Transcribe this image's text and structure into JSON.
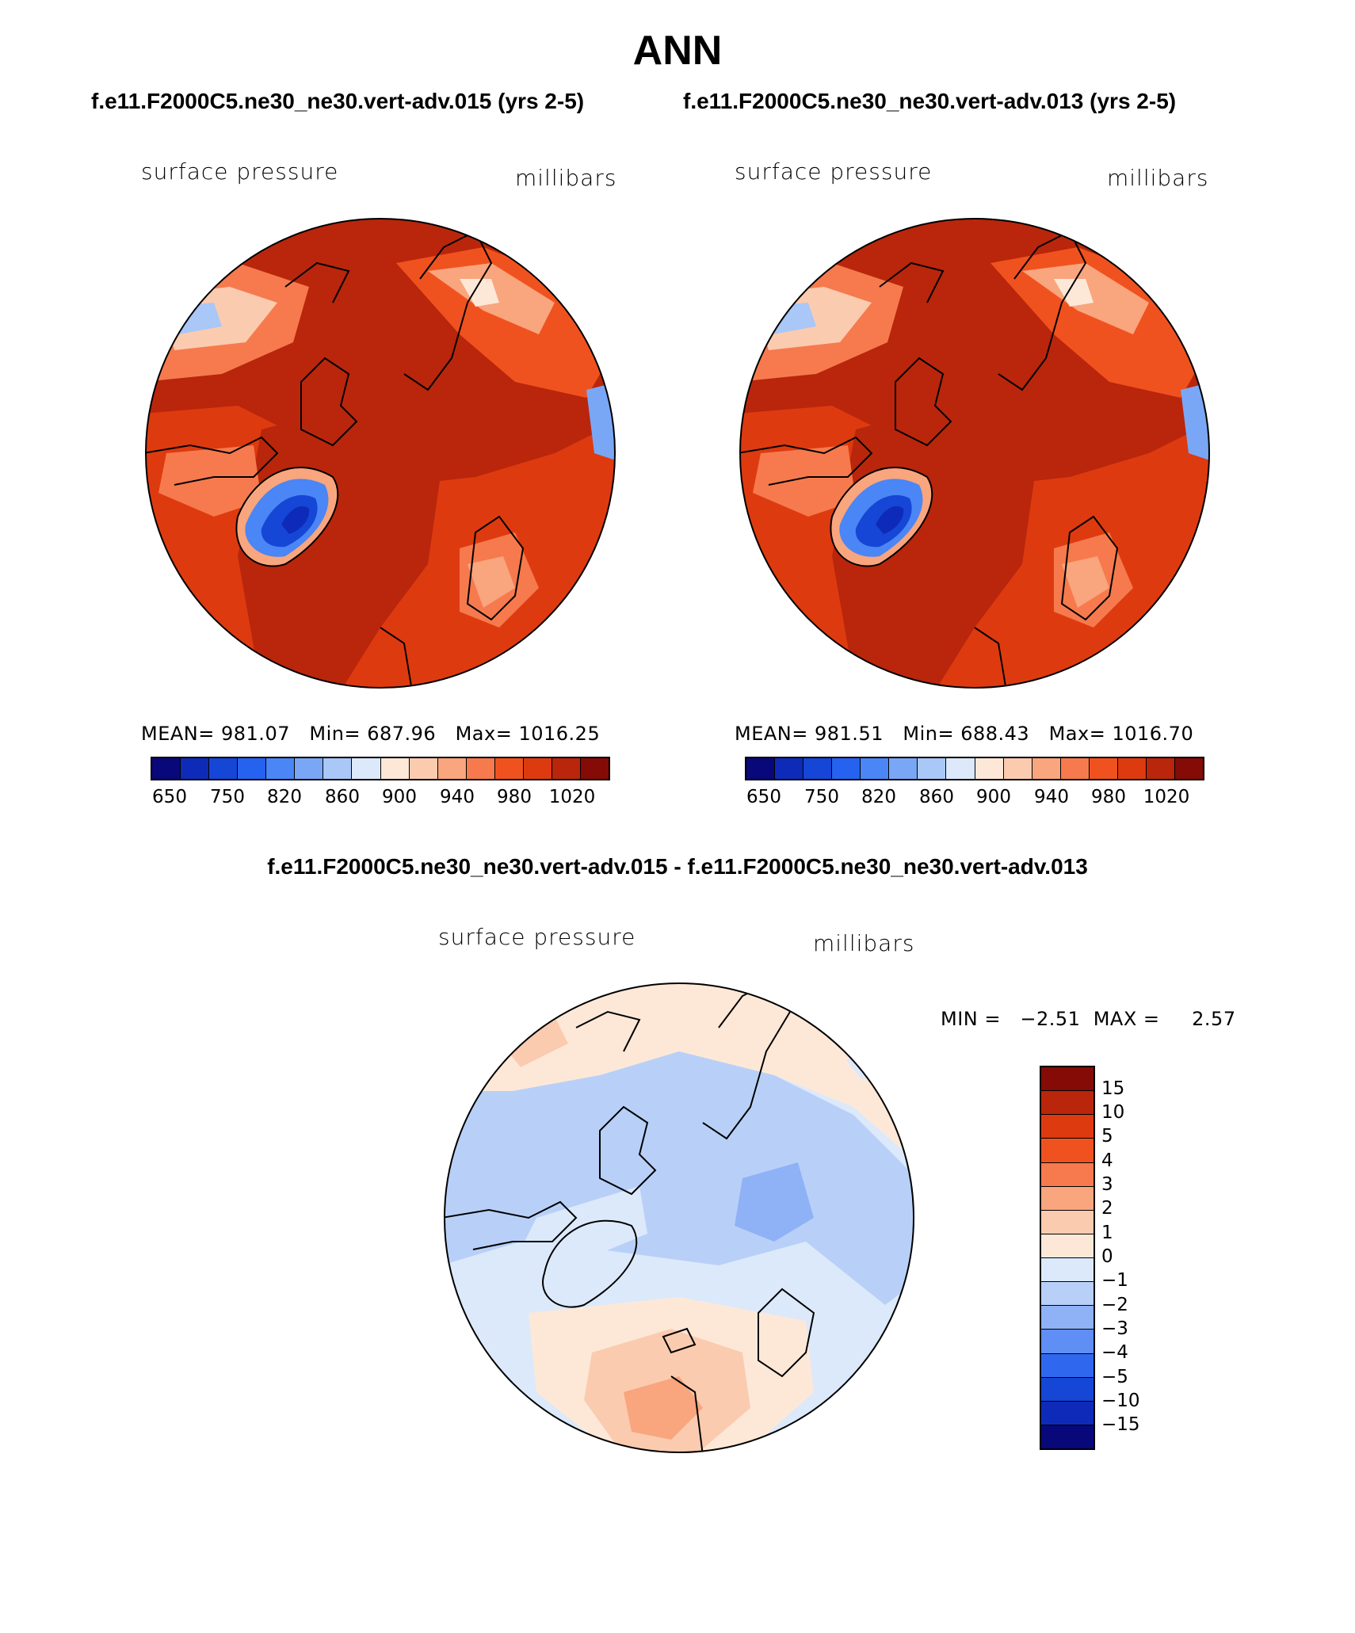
{
  "title": "ANN",
  "panels": [
    {
      "run_title": "f.e11.F2000C5.ne30_ne30.vert-adv.015 (yrs 2-5)",
      "variable": "surface pressure",
      "units": "millibars",
      "stats": {
        "mean_label": "MEAN=",
        "mean": "981.07",
        "min_label": "Min=",
        "min": "687.96",
        "max_label": "Max=",
        "max": "1016.25"
      }
    },
    {
      "run_title": "f.e11.F2000C5.ne30_ne30.vert-adv.013 (yrs 2-5)",
      "variable": "surface pressure",
      "units": "millibars",
      "stats": {
        "mean_label": "MEAN=",
        "mean": "981.51",
        "min_label": "Min=",
        "min": "688.43",
        "max_label": "Max=",
        "max": "1016.70"
      }
    }
  ],
  "abs_colorbar": {
    "colors": [
      "#08087a",
      "#0d2bb8",
      "#1646d6",
      "#2662f0",
      "#4a86f5",
      "#7aa7f5",
      "#a9c7f7",
      "#dce9fb",
      "#fde8d8",
      "#fbcbb0",
      "#f9a57e",
      "#f67a4d",
      "#f0521f",
      "#de3a10",
      "#b9260c",
      "#840b06"
    ],
    "ticks": [
      "650",
      "750",
      "820",
      "860",
      "900",
      "940",
      "980",
      "1020"
    ]
  },
  "diff_panel": {
    "title": "f.e11.F2000C5.ne30_ne30.vert-adv.015 - f.e11.F2000C5.ne30_ne30.vert-adv.013",
    "variable": "surface pressure",
    "units": "millibars",
    "min_label": "MIN =",
    "min": "−2.51",
    "max_label": "MAX =",
    "max": "2.57",
    "colorbar": {
      "colors_top_to_bottom": [
        "#840b06",
        "#b9260c",
        "#de3a10",
        "#f0521f",
        "#f67a4d",
        "#f9a57e",
        "#fbcbb0",
        "#fde8d8",
        "#dce9fb",
        "#b8d0f8",
        "#8fb1f6",
        "#5f8ef4",
        "#2f68ee",
        "#1646d6",
        "#0d2bb8",
        "#08087a"
      ],
      "ticks": [
        "15",
        "10",
        "5",
        "4",
        "3",
        "2",
        "1",
        "0",
        "−1",
        "−2",
        "−3",
        "−4",
        "−5",
        "−10",
        "−15"
      ]
    }
  }
}
